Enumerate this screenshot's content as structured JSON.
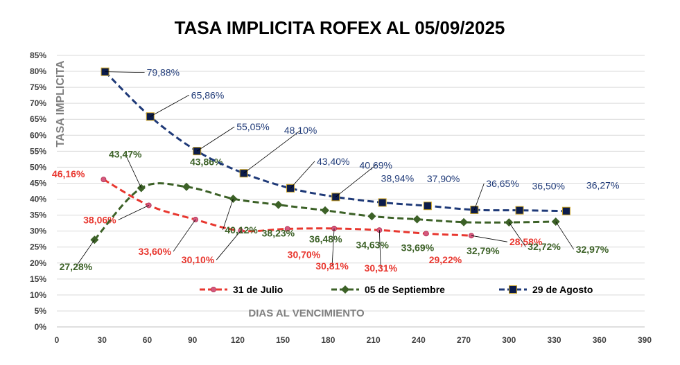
{
  "chart_data": {
    "type": "line",
    "title": "TASA IMPLICITA ROFEX AL 05/09/2025",
    "xlabel": "DIAS AL VENCIMIENTO",
    "ylabel": "TASA IMPLICITA",
    "xlim": [
      0,
      390
    ],
    "ylim": [
      0,
      85
    ],
    "x_ticks": [
      "0",
      "30",
      "60",
      "90",
      "120",
      "150",
      "180",
      "210",
      "240",
      "270",
      "300",
      "330",
      "360",
      "390"
    ],
    "y_ticks": [
      "0%",
      "5%",
      "10%",
      "15%",
      "20%",
      "25%",
      "30%",
      "35%",
      "40%",
      "45%",
      "50%",
      "55%",
      "60%",
      "65%",
      "70%",
      "75%",
      "80%",
      "85%"
    ],
    "grid": true,
    "legend_position": "bottom",
    "series": [
      {
        "name": "31 de Julio",
        "color": "#e8372f",
        "label_color": "#e8372f",
        "marker": "circle",
        "x": [
          31,
          61,
          92,
          122,
          153,
          184,
          214,
          245,
          275
        ],
        "y": [
          46.16,
          38.06,
          33.6,
          30.1,
          30.7,
          30.81,
          30.31,
          29.22,
          28.58
        ],
        "labels": [
          "46,16%",
          "38,06%",
          "33,60%",
          "30,10%",
          "30,70%",
          "30,81%",
          "30,31%",
          "29,22%",
          "28,58%"
        ]
      },
      {
        "name": "05 de Septiembre",
        "color": "#3c6127",
        "label_color": "#3c6127",
        "marker": "diamond",
        "x": [
          25,
          56,
          86,
          117,
          147,
          178,
          209,
          239,
          270,
          300,
          331
        ],
        "y": [
          27.28,
          43.47,
          43.86,
          40.12,
          38.23,
          36.48,
          34.63,
          33.69,
          32.79,
          32.72,
          32.97
        ],
        "labels": [
          "27,28%",
          "43,47%",
          "43,86%",
          "40,12%",
          "38,23%",
          "36,48%",
          "34,63%",
          "33,69%",
          "32,79%",
          "32,72%",
          "32,97%"
        ]
      },
      {
        "name": "29 de Agosto",
        "color": "#1f3a78",
        "label_color": "#1f3a78",
        "marker": "square",
        "x": [
          32,
          62,
          93,
          124,
          155,
          185,
          216,
          246,
          277,
          307,
          338
        ],
        "y": [
          79.88,
          65.86,
          55.05,
          48.1,
          43.4,
          40.69,
          38.94,
          37.9,
          36.65,
          36.5,
          36.27
        ],
        "labels": [
          "79,88%",
          "65,86%",
          "55,05%",
          "48,10%",
          "43,40%",
          "40,69%",
          "38,94%",
          "37,90%",
          "36,65%",
          "36,50%",
          "36,27%"
        ]
      }
    ]
  }
}
